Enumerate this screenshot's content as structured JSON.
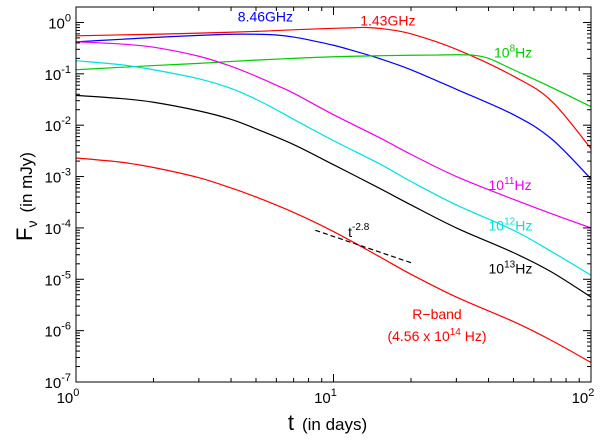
{
  "chart_data": {
    "type": "line",
    "title": "",
    "xlabel": {
      "symbol": "t",
      "unit": "(in days)"
    },
    "ylabel": {
      "symbol": "F",
      "sub": "ν",
      "unit": "(in mJy)"
    },
    "xscale": "log",
    "yscale": "log",
    "xlim": [
      1,
      100
    ],
    "ylim": [
      1e-07,
      2
    ],
    "grid": false,
    "x_ticks": [
      {
        "value": 1,
        "base": "10",
        "exp": "0"
      },
      {
        "value": 10,
        "base": "10",
        "exp": "1"
      },
      {
        "value": 100,
        "base": "10",
        "exp": "2"
      }
    ],
    "y_ticks": [
      {
        "value": 1e-07,
        "base": "10",
        "exp": "-7"
      },
      {
        "value": 1e-06,
        "base": "10",
        "exp": "-6"
      },
      {
        "value": 1e-05,
        "base": "10",
        "exp": "-5"
      },
      {
        "value": 0.0001,
        "base": "10",
        "exp": "-4"
      },
      {
        "value": 0.001,
        "base": "10",
        "exp": "-3"
      },
      {
        "value": 0.01,
        "base": "10",
        "exp": "-2"
      },
      {
        "value": 0.1,
        "base": "10",
        "exp": "-1"
      },
      {
        "value": 1,
        "base": "10",
        "exp": "0"
      }
    ],
    "series": [
      {
        "color": "#0000ff",
        "x": [
          1,
          1.5,
          2,
          3,
          4,
          5,
          6,
          7,
          8,
          10,
          12,
          15,
          20,
          30,
          50,
          70,
          100
        ],
        "y": [
          0.42,
          0.47,
          0.51,
          0.56,
          0.59,
          0.59,
          0.57,
          0.52,
          0.46,
          0.36,
          0.28,
          0.2,
          0.12,
          0.05,
          0.016,
          0.0055,
          0.0009
        ],
        "label": {
          "text": "8.46GHz",
          "x": 4.25,
          "y": 1.05
        }
      },
      {
        "color": "#ff0000",
        "x": [
          1,
          2,
          3,
          5,
          7,
          10,
          12,
          13,
          14,
          16,
          20,
          30,
          50,
          70,
          100
        ],
        "y": [
          0.55,
          0.59,
          0.62,
          0.67,
          0.72,
          0.77,
          0.79,
          0.8,
          0.79,
          0.74,
          0.6,
          0.3,
          0.09,
          0.03,
          0.0035
        ],
        "label": {
          "text": "1.43GHz",
          "x": 12.7,
          "y": 0.88
        }
      },
      {
        "color": "#00cc00",
        "x": [
          1,
          2,
          3,
          5,
          7,
          10,
          15,
          20,
          25,
          30,
          35,
          40,
          50,
          70,
          100
        ],
        "y": [
          0.12,
          0.145,
          0.16,
          0.185,
          0.2,
          0.215,
          0.225,
          0.23,
          0.232,
          0.235,
          0.23,
          0.2,
          0.12,
          0.055,
          0.023
        ],
        "label": {
          "text": "10",
          "exp": "8",
          "suffix": "Hz",
          "x": 42,
          "y": 0.21
        }
      },
      {
        "color": "#00e0e0",
        "x": [
          1,
          1.5,
          2,
          3,
          4,
          5,
          6,
          7,
          10,
          15,
          20,
          30,
          50,
          70,
          100
        ],
        "y": [
          0.18,
          0.15,
          0.12,
          0.08,
          0.052,
          0.032,
          0.02,
          0.013,
          0.005,
          0.0018,
          0.0008,
          0.00028,
          9e-05,
          3.5e-05,
          1.2e-05
        ],
        "label": {
          "text": "10",
          "exp": "12",
          "suffix": "Hz",
          "x": 40,
          "y": 9e-05
        }
      },
      {
        "color": "#ee00ee",
        "x": [
          1,
          1.5,
          2,
          3,
          4,
          5,
          6,
          7,
          10,
          15,
          20,
          30,
          50,
          70,
          100
        ],
        "y": [
          0.42,
          0.38,
          0.33,
          0.22,
          0.14,
          0.09,
          0.06,
          0.042,
          0.016,
          0.0058,
          0.0027,
          0.001,
          0.00036,
          0.00019,
          0.0001
        ],
        "label": {
          "text": "10",
          "exp": "11",
          "suffix": "Hz",
          "x": 40,
          "y": 0.00055
        }
      },
      {
        "color": "#000000",
        "x": [
          1,
          1.5,
          2,
          3,
          4,
          5,
          7,
          10,
          15,
          20,
          30,
          50,
          70,
          100
        ],
        "y": [
          0.038,
          0.033,
          0.028,
          0.019,
          0.013,
          0.0085,
          0.0042,
          0.0017,
          0.0006,
          0.00028,
          0.0001,
          3.3e-05,
          1.4e-05,
          4.5e-06
        ],
        "label": {
          "text": "10",
          "exp": "13",
          "suffix": "Hz",
          "x": 40,
          "y": 1.3e-05
        }
      },
      {
        "color": "#ff0000",
        "x": [
          1,
          1.5,
          2,
          3,
          4,
          5,
          7,
          10,
          15,
          20,
          30,
          50,
          70,
          100
        ],
        "y": [
          0.0023,
          0.0019,
          0.0015,
          0.00095,
          0.0006,
          0.0004,
          0.0002,
          8.5e-05,
          2.8e-05,
          1.25e-05,
          4.5e-06,
          1.5e-06,
          6.5e-07,
          2.4e-07
        ],
        "label_lines": [
          "R−band",
          "(4.56 x 10",
          "14",
          " Hz)"
        ]
      }
    ],
    "annotation": {
      "text": "t",
      "exp": "-2.8",
      "x": [
        8.5,
        20
      ],
      "y": [
        9e-05,
        2.1e-05
      ],
      "label_x": 11.4,
      "label_y": 6.6e-05,
      "color": "#000000",
      "style": "dashed"
    }
  }
}
